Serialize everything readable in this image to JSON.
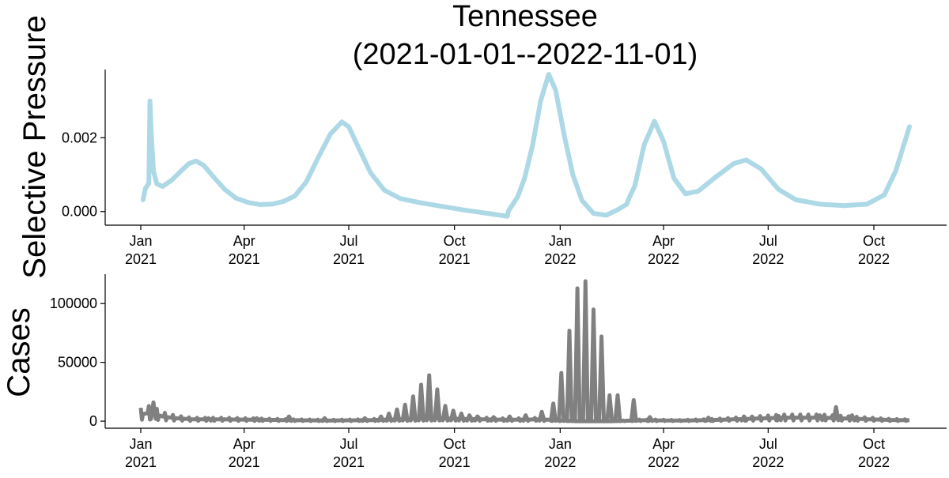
{
  "chart_data": {
    "title": "Tennessee",
    "subtitle": "(2021-01-01--2022-11-01)",
    "date_range": [
      "2021-01-01",
      "2022-11-01"
    ],
    "x_ticks": [
      {
        "date": "2021-01-01",
        "month": "Jan",
        "year": "2021"
      },
      {
        "date": "2021-04-01",
        "month": "Apr",
        "year": "2021"
      },
      {
        "date": "2021-07-01",
        "month": "Jul",
        "year": "2021"
      },
      {
        "date": "2021-10-01",
        "month": "Oct",
        "year": "2021"
      },
      {
        "date": "2022-01-01",
        "month": "Jan",
        "year": "2022"
      },
      {
        "date": "2022-04-01",
        "month": "Apr",
        "year": "2022"
      },
      {
        "date": "2022-07-01",
        "month": "Jul",
        "year": "2022"
      },
      {
        "date": "2022-10-01",
        "month": "Oct",
        "year": "2022"
      }
    ],
    "panels": [
      {
        "type": "line",
        "ylabel": "Selective Pressure",
        "color": "#add8e6",
        "ylim": [
          -0.00037,
          0.00385
        ],
        "y_ticks": [
          {
            "value": 0,
            "label": "0.000"
          },
          {
            "value": 0.002,
            "label": "0.002"
          }
        ],
        "points": [
          [
            "2021-01-03",
            0.00032
          ],
          [
            "2021-01-05",
            0.00062
          ],
          [
            "2021-01-07",
            0.00072
          ],
          [
            "2021-01-08",
            0.00076
          ],
          [
            "2021-01-09",
            0.003
          ],
          [
            "2021-01-10",
            0.0022
          ],
          [
            "2021-01-12",
            0.0011
          ],
          [
            "2021-01-15",
            0.00075
          ],
          [
            "2021-01-20",
            0.00068
          ],
          [
            "2021-01-28",
            0.00085
          ],
          [
            "2021-02-05",
            0.0011
          ],
          [
            "2021-02-12",
            0.0013
          ],
          [
            "2021-02-18",
            0.00137
          ],
          [
            "2021-02-25",
            0.00125
          ],
          [
            "2021-03-05",
            0.00095
          ],
          [
            "2021-03-15",
            0.0006
          ],
          [
            "2021-03-25",
            0.00036
          ],
          [
            "2021-04-05",
            0.00024
          ],
          [
            "2021-04-15",
            0.00019
          ],
          [
            "2021-04-25",
            0.0002
          ],
          [
            "2021-05-05",
            0.00027
          ],
          [
            "2021-05-15",
            0.00042
          ],
          [
            "2021-05-25",
            0.0008
          ],
          [
            "2021-06-05",
            0.0015
          ],
          [
            "2021-06-15",
            0.0021
          ],
          [
            "2021-06-25",
            0.00243
          ],
          [
            "2021-07-01",
            0.0023
          ],
          [
            "2021-07-10",
            0.0017
          ],
          [
            "2021-07-20",
            0.00105
          ],
          [
            "2021-08-01",
            0.00058
          ],
          [
            "2021-08-15",
            0.00035
          ],
          [
            "2021-09-01",
            0.00024
          ],
          [
            "2021-09-20",
            0.00014
          ],
          [
            "2021-10-10",
            4e-05
          ],
          [
            "2021-11-01",
            -6e-05
          ],
          [
            "2021-11-16",
            -0.00013
          ],
          [
            "2021-11-17",
            2e-05
          ],
          [
            "2021-11-25",
            0.0004
          ],
          [
            "2021-12-01",
            0.0009
          ],
          [
            "2021-12-08",
            0.0018
          ],
          [
            "2021-12-15",
            0.003
          ],
          [
            "2021-12-22",
            0.00372
          ],
          [
            "2021-12-28",
            0.0033
          ],
          [
            "2022-01-05",
            0.002
          ],
          [
            "2022-01-12",
            0.001
          ],
          [
            "2022-01-20",
            0.0003
          ],
          [
            "2022-01-30",
            -5e-05
          ],
          [
            "2022-02-10",
            -0.0001
          ],
          [
            "2022-02-20",
            5e-05
          ],
          [
            "2022-02-28",
            0.0002
          ],
          [
            "2022-03-01",
            0.0003
          ],
          [
            "2022-03-07",
            0.0007
          ],
          [
            "2022-03-15",
            0.0018
          ],
          [
            "2022-03-24",
            0.00245
          ],
          [
            "2022-04-01",
            0.0019
          ],
          [
            "2022-04-10",
            0.0009
          ],
          [
            "2022-04-20",
            0.00048
          ],
          [
            "2022-05-01",
            0.00055
          ],
          [
            "2022-05-15",
            0.0009
          ],
          [
            "2022-06-01",
            0.0013
          ],
          [
            "2022-06-12",
            0.0014
          ],
          [
            "2022-06-25",
            0.00115
          ],
          [
            "2022-07-10",
            0.0006
          ],
          [
            "2022-07-25",
            0.00032
          ],
          [
            "2022-08-15",
            0.0002
          ],
          [
            "2022-09-05",
            0.00016
          ],
          [
            "2022-09-25",
            0.0002
          ],
          [
            "2022-10-10",
            0.00045
          ],
          [
            "2022-10-20",
            0.0011
          ],
          [
            "2022-11-01",
            0.0023
          ]
        ]
      },
      {
        "type": "line",
        "ylabel": "Cases",
        "color": "#808080",
        "ylim": [
          -6000,
          125000
        ],
        "y_ticks": [
          {
            "value": 0,
            "label": "0"
          },
          {
            "value": 50000,
            "label": "50000"
          },
          {
            "value": 100000,
            "label": "100000"
          }
        ],
        "baseline": [
          [
            "2021-01-01",
            6000
          ],
          [
            "2021-01-10",
            7000
          ],
          [
            "2021-01-20",
            4000
          ],
          [
            "2021-01-31",
            2500
          ],
          [
            "2021-02-15",
            1500
          ],
          [
            "2021-03-15",
            1500
          ],
          [
            "2021-04-15",
            1200
          ],
          [
            "2021-05-15",
            800
          ],
          [
            "2021-06-15",
            600
          ],
          [
            "2021-07-15",
            800
          ],
          [
            "2021-08-15",
            1500
          ],
          [
            "2021-09-15",
            2500
          ],
          [
            "2021-10-15",
            1800
          ],
          [
            "2021-11-15",
            1200
          ],
          [
            "2021-12-15",
            1500
          ],
          [
            "2022-01-15",
            0
          ],
          [
            "2022-02-15",
            0
          ],
          [
            "2022-03-15",
            800
          ],
          [
            "2022-04-15",
            500
          ],
          [
            "2022-05-15",
            1000
          ],
          [
            "2022-06-15",
            2000
          ],
          [
            "2022-07-15",
            3000
          ],
          [
            "2022-08-15",
            3000
          ],
          [
            "2022-09-15",
            2000
          ],
          [
            "2022-10-15",
            1000
          ],
          [
            "2022-11-01",
            800
          ]
        ],
        "spikes": [
          [
            "2021-01-12",
            16000
          ],
          [
            "2021-03-01",
            2500
          ],
          [
            "2021-04-12",
            2500
          ],
          [
            "2021-05-10",
            4000
          ],
          [
            "2021-06-10",
            2500
          ],
          [
            "2021-07-15",
            2500
          ],
          [
            "2021-07-29",
            4000
          ],
          [
            "2021-08-05",
            6500
          ],
          [
            "2021-08-12",
            10000
          ],
          [
            "2021-08-19",
            14000
          ],
          [
            "2021-08-26",
            21000
          ],
          [
            "2021-09-02",
            31000
          ],
          [
            "2021-09-09",
            39000
          ],
          [
            "2021-09-16",
            27000
          ],
          [
            "2021-09-23",
            13000
          ],
          [
            "2021-09-30",
            9000
          ],
          [
            "2021-10-07",
            6500
          ],
          [
            "2021-10-14",
            5000
          ],
          [
            "2021-10-21",
            4000
          ],
          [
            "2021-11-04",
            3500
          ],
          [
            "2021-11-18",
            4000
          ],
          [
            "2021-12-02",
            5000
          ],
          [
            "2021-12-16",
            8000
          ],
          [
            "2021-12-26",
            15000
          ],
          [
            "2022-01-02",
            41000
          ],
          [
            "2022-01-09",
            77000
          ],
          [
            "2022-01-16",
            113000
          ],
          [
            "2022-01-23",
            119000
          ],
          [
            "2022-01-30",
            95000
          ],
          [
            "2022-02-06",
            72000
          ],
          [
            "2022-02-13",
            22000
          ],
          [
            "2022-02-20",
            22000
          ],
          [
            "2022-03-06",
            18000
          ],
          [
            "2022-03-20",
            3500
          ],
          [
            "2022-05-10",
            3000
          ],
          [
            "2022-06-10",
            4000
          ],
          [
            "2022-07-10",
            4500
          ],
          [
            "2022-08-15",
            5000
          ],
          [
            "2022-08-29",
            12000
          ],
          [
            "2022-09-12",
            5000
          ]
        ]
      }
    ]
  }
}
